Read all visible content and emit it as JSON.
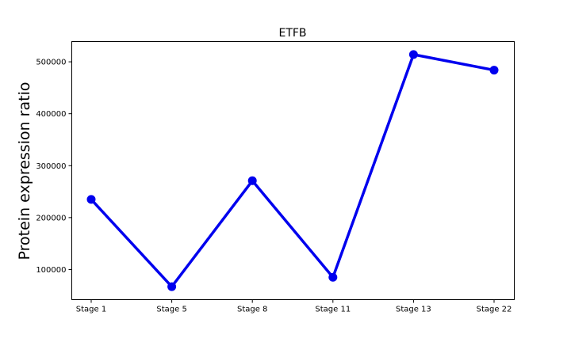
{
  "chart_data": {
    "type": "line",
    "title": "ETFB",
    "xlabel": "",
    "ylabel": "Protein expression ratio",
    "categories": [
      "Stage 1",
      "Stage 5",
      "Stage 8",
      "Stage 11",
      "Stage 13",
      "Stage 22"
    ],
    "series": [
      {
        "values": [
          235000,
          67000,
          271000,
          85000,
          514000,
          484000
        ],
        "color": "#0000ee"
      }
    ],
    "yticks": [
      100000,
      200000,
      300000,
      400000,
      500000
    ],
    "ytick_labels": [
      "100000",
      "200000",
      "300000",
      "400000",
      "500000"
    ],
    "ylim": [
      42000,
      539000
    ],
    "grid": false,
    "legend": false
  }
}
